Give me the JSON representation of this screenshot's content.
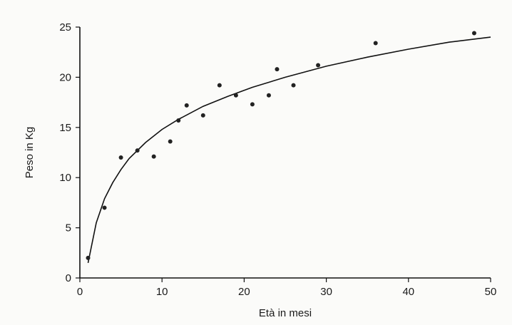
{
  "chart_data": {
    "type": "scatter",
    "title": "",
    "xlabel": "Età in mesi",
    "ylabel": "Peso in Kg",
    "xlim": [
      0,
      50
    ],
    "ylim": [
      0,
      25
    ],
    "xticks": [
      "0",
      "10",
      "20",
      "30",
      "40",
      "50"
    ],
    "yticks": [
      "0",
      "5",
      "10",
      "15",
      "20",
      "25"
    ],
    "grid": false,
    "series": [
      {
        "kind": "points",
        "x": [
          1,
          3,
          5,
          7,
          9,
          11,
          12,
          13,
          15,
          17,
          19,
          21,
          23,
          24,
          26,
          29,
          36,
          48
        ],
        "y": [
          2,
          7,
          12,
          12.7,
          12.1,
          13.6,
          15.7,
          17.2,
          16.2,
          19.2,
          18.2,
          17.3,
          18.2,
          20.8,
          19.2,
          21.2,
          23.4,
          24.4
        ]
      },
      {
        "kind": "fitted-curve",
        "x": [
          1,
          2,
          3,
          4,
          5,
          6,
          8,
          10,
          12,
          15,
          18,
          21,
          25,
          30,
          35,
          40,
          45,
          50
        ],
        "y": [
          1.5,
          5.5,
          7.9,
          9.5,
          10.8,
          11.9,
          13.5,
          14.8,
          15.8,
          17.1,
          18.1,
          19.0,
          20.0,
          21.1,
          22.0,
          22.8,
          23.5,
          24.0
        ]
      }
    ]
  }
}
